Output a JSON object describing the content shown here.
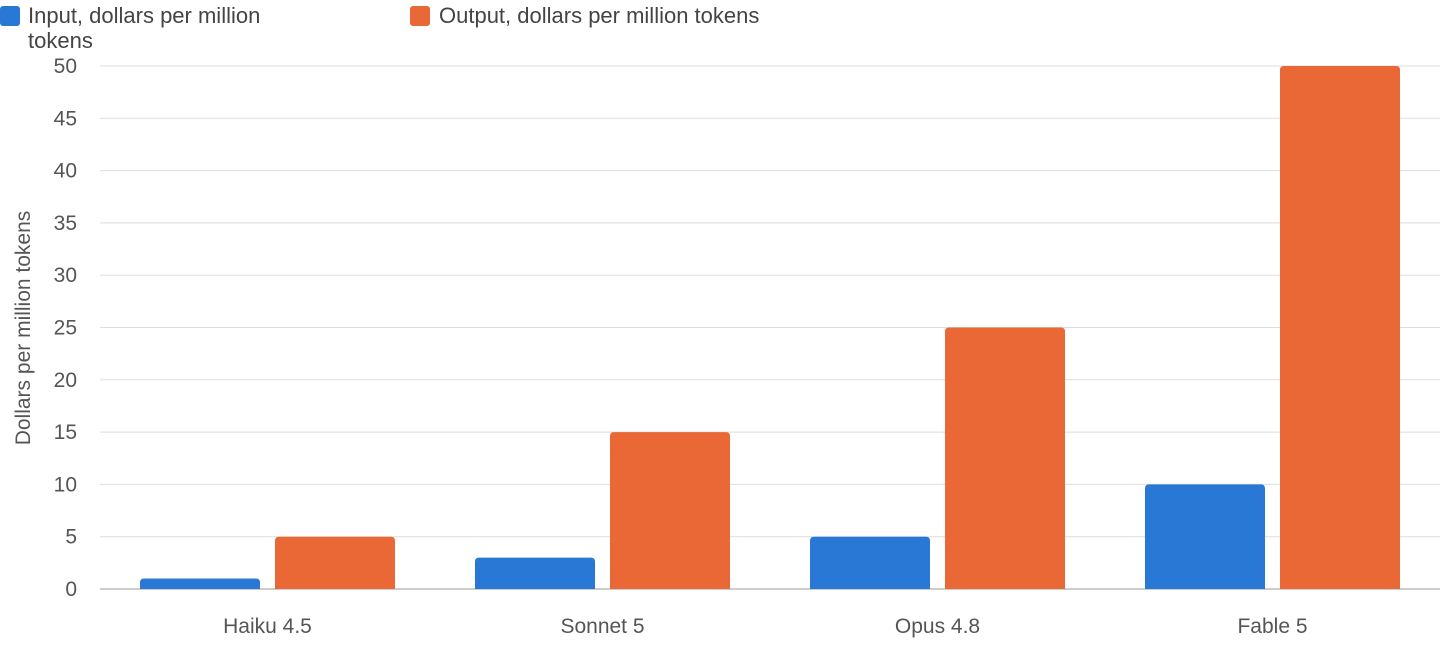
{
  "chart_data": {
    "type": "bar",
    "title": "",
    "xlabel": "",
    "ylabel": "Dollars per million tokens",
    "ylim": [
      0,
      50
    ],
    "yticks": [
      0,
      5,
      10,
      15,
      20,
      25,
      30,
      35,
      40,
      45,
      50
    ],
    "grid": true,
    "legend_position": "top-left",
    "categories": [
      "Haiku 4.5",
      "Sonnet 5",
      "Opus 4.8",
      "Fable 5"
    ],
    "series": [
      {
        "name": "Input, dollars per million tokens",
        "legend_lines": [
          "Input, dollars per million",
          "tokens"
        ],
        "color": "#2a78d6",
        "values": [
          1,
          3,
          5,
          10
        ]
      },
      {
        "name": "Output, dollars per million tokens",
        "legend_lines": [
          "Output, dollars per million tokens"
        ],
        "color": "#e96836",
        "values": [
          5,
          15,
          25,
          50
        ]
      }
    ],
    "colors": {
      "grid": "#dddddd",
      "axis": "#bbbbbb",
      "text": "#555555"
    }
  }
}
